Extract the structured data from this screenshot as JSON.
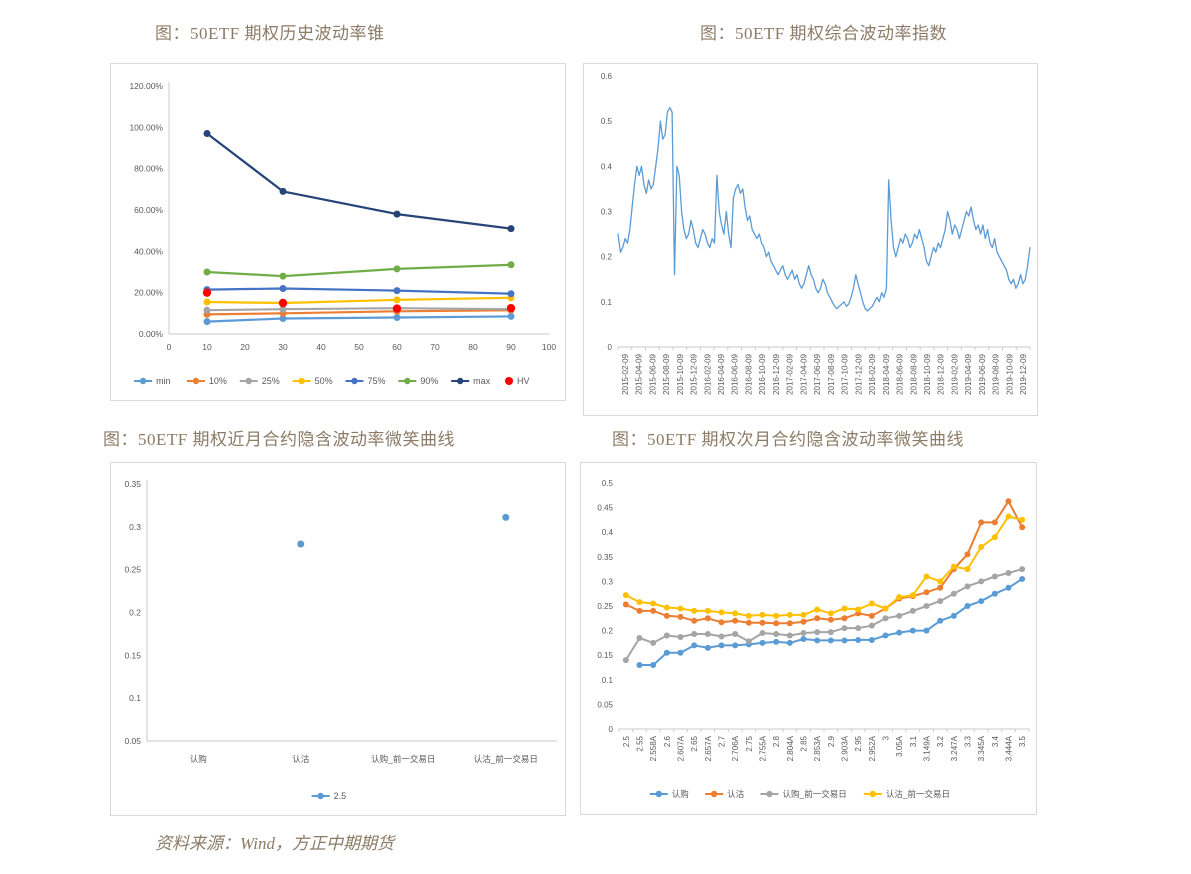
{
  "page": {
    "source_note": "资料来源：Wind，方正中期期货"
  },
  "figures": [
    {
      "title": "图：50ETF 期权历史波动率锥"
    },
    {
      "title": "图：50ETF 期权综合波动率指数"
    },
    {
      "title": "图：50ETF 期权近月合约隐含波动率微笑曲线"
    },
    {
      "title": "图：50ETF 期权次月合约隐含波动率微笑曲线"
    }
  ],
  "chart_data": [
    {
      "id": "vol-cone",
      "type": "line",
      "title": "图：50ETF 期权历史波动率锥",
      "x": [
        10,
        30,
        60,
        90
      ],
      "xlim": [
        0,
        100
      ],
      "x_ticks": [
        0,
        10,
        20,
        30,
        40,
        50,
        60,
        70,
        80,
        90,
        100
      ],
      "ylim": [
        0,
        1.2
      ],
      "y_ticks": [
        "0.00%",
        "20.00%",
        "40.00%",
        "60.00%",
        "80.00%",
        "100.00%",
        "120.00%"
      ],
      "grid": false,
      "legend_position": "bottom",
      "series": [
        {
          "name": "min",
          "color": "#5B9BD5",
          "values": [
            0.06,
            0.075,
            0.08,
            0.085
          ]
        },
        {
          "name": "10%",
          "color": "#ED7D31",
          "values": [
            0.095,
            0.1,
            0.11,
            0.115
          ]
        },
        {
          "name": "25%",
          "color": "#A5A5A5",
          "values": [
            0.115,
            0.12,
            0.125,
            0.12
          ]
        },
        {
          "name": "50%",
          "color": "#FFC000",
          "values": [
            0.155,
            0.15,
            0.165,
            0.175
          ]
        },
        {
          "name": "75%",
          "color": "#4472C4",
          "values": [
            0.215,
            0.22,
            0.21,
            0.195
          ]
        },
        {
          "name": "90%",
          "color": "#70AD47",
          "values": [
            0.3,
            0.28,
            0.315,
            0.335
          ]
        },
        {
          "name": "max",
          "color": "#264478",
          "values": [
            0.97,
            0.69,
            0.58,
            0.51
          ]
        },
        {
          "name": "HV",
          "color": "#FF0000",
          "markers_only": true,
          "values": [
            0.2,
            0.15,
            0.123,
            0.125
          ]
        }
      ]
    },
    {
      "id": "vol-index",
      "type": "line",
      "title": "图：50ETF 期权综合波动率指数",
      "x_labels": [
        "2015-02-09",
        "2015-04-09",
        "2015-06-09",
        "2015-08-09",
        "2015-10-09",
        "2015-12-09",
        "2016-02-09",
        "2016-04-09",
        "2016-06-09",
        "2016-08-09",
        "2016-10-09",
        "2016-12-09",
        "2017-02-09",
        "2017-04-09",
        "2017-06-09",
        "2017-08-09",
        "2017-10-09",
        "2017-12-09",
        "2018-02-09",
        "2018-04-09",
        "2018-06-09",
        "2018-08-09",
        "2018-10-09",
        "2018-12-09",
        "2019-02-09",
        "2019-04-09",
        "2019-06-09",
        "2019-08-09",
        "2019-10-09",
        "2019-12-09"
      ],
      "ylim": [
        0,
        0.6
      ],
      "y_ticks": [
        "0",
        "0.1",
        "0.2",
        "0.3",
        "0.4",
        "0.5",
        "0.6"
      ],
      "grid": false,
      "legend_position": "none",
      "series": [
        {
          "color": "#5B9BD5",
          "values": [
            0.25,
            0.21,
            0.22,
            0.24,
            0.23,
            0.26,
            0.31,
            0.36,
            0.4,
            0.38,
            0.4,
            0.36,
            0.34,
            0.37,
            0.35,
            0.36,
            0.4,
            0.44,
            0.5,
            0.46,
            0.47,
            0.52,
            0.53,
            0.52,
            0.16,
            0.4,
            0.38,
            0.3,
            0.26,
            0.24,
            0.25,
            0.28,
            0.26,
            0.23,
            0.22,
            0.24,
            0.26,
            0.25,
            0.23,
            0.22,
            0.24,
            0.23,
            0.38,
            0.3,
            0.27,
            0.25,
            0.3,
            0.25,
            0.22,
            0.33,
            0.35,
            0.36,
            0.34,
            0.35,
            0.31,
            0.28,
            0.29,
            0.26,
            0.25,
            0.24,
            0.25,
            0.23,
            0.22,
            0.2,
            0.21,
            0.19,
            0.18,
            0.17,
            0.16,
            0.17,
            0.18,
            0.16,
            0.15,
            0.16,
            0.17,
            0.15,
            0.16,
            0.14,
            0.13,
            0.14,
            0.16,
            0.18,
            0.16,
            0.15,
            0.13,
            0.12,
            0.13,
            0.15,
            0.14,
            0.12,
            0.11,
            0.1,
            0.09,
            0.085,
            0.09,
            0.095,
            0.1,
            0.09,
            0.095,
            0.11,
            0.13,
            0.16,
            0.14,
            0.12,
            0.1,
            0.085,
            0.08,
            0.085,
            0.09,
            0.1,
            0.11,
            0.1,
            0.12,
            0.11,
            0.13,
            0.37,
            0.28,
            0.22,
            0.2,
            0.22,
            0.24,
            0.23,
            0.25,
            0.24,
            0.22,
            0.23,
            0.25,
            0.24,
            0.26,
            0.24,
            0.22,
            0.19,
            0.18,
            0.2,
            0.22,
            0.21,
            0.23,
            0.22,
            0.24,
            0.26,
            0.3,
            0.28,
            0.25,
            0.27,
            0.26,
            0.24,
            0.26,
            0.28,
            0.3,
            0.29,
            0.31,
            0.28,
            0.26,
            0.27,
            0.25,
            0.27,
            0.24,
            0.26,
            0.23,
            0.22,
            0.24,
            0.21,
            0.2,
            0.19,
            0.18,
            0.17,
            0.15,
            0.14,
            0.15,
            0.13,
            0.14,
            0.16,
            0.14,
            0.15,
            0.18,
            0.22
          ]
        }
      ]
    },
    {
      "id": "smile-near",
      "type": "scatter",
      "title": "图：50ETF 期权近月合约隐含波动率微笑曲线",
      "x_labels": [
        "认购",
        "认沽",
        "认购_前一交易日",
        "认沽_前一交易日"
      ],
      "ylim": [
        0.05,
        0.35
      ],
      "y_ticks": [
        "0.05",
        "0.1",
        "0.15",
        "0.2",
        "0.25",
        "0.3",
        "0.35"
      ],
      "grid": false,
      "legend_position": "bottom",
      "series": [
        {
          "name": "2.5",
          "color": "#5B9BD5",
          "values": [
            null,
            0.28,
            null,
            0.311
          ]
        }
      ]
    },
    {
      "id": "smile-next",
      "type": "line",
      "title": "图：50ETF 期权次月合约隐含波动率微笑曲线",
      "x_labels": [
        "2.5",
        "2.55",
        "2.558A",
        "2.6",
        "2.607A",
        "2.65",
        "2.657A",
        "2.7",
        "2.706A",
        "2.75",
        "2.755A",
        "2.8",
        "2.804A",
        "2.85",
        "2.853A",
        "2.9",
        "2.903A",
        "2.95",
        "2.952A",
        "3",
        "3.05A",
        "3.1",
        "3.149A",
        "3.2",
        "3.247A",
        "3.3",
        "3.345A",
        "3.4",
        "3.444A",
        "3.5"
      ],
      "ylim": [
        0,
        0.5
      ],
      "y_ticks": [
        "0",
        "0.05",
        "0.1",
        "0.15",
        "0.2",
        "0.25",
        "0.3",
        "0.35",
        "0.4",
        "0.45",
        "0.5"
      ],
      "grid": false,
      "legend_position": "bottom",
      "series": [
        {
          "name": "认购",
          "color": "#5B9BD5",
          "values": [
            null,
            0.13,
            0.13,
            0.155,
            0.155,
            0.17,
            0.165,
            0.17,
            0.17,
            0.172,
            0.175,
            0.177,
            0.175,
            0.183,
            0.18,
            0.18,
            0.18,
            0.181,
            0.181,
            0.19,
            0.196,
            0.2,
            0.2,
            0.22,
            0.23,
            0.25,
            0.26,
            0.275,
            0.287,
            0.305
          ]
        },
        {
          "name": "认沽",
          "color": "#ED7D31",
          "values": [
            0.253,
            0.24,
            0.24,
            0.23,
            0.228,
            0.22,
            0.225,
            0.217,
            0.22,
            0.216,
            0.216,
            0.215,
            0.215,
            0.218,
            0.225,
            0.222,
            0.225,
            0.235,
            0.23,
            0.245,
            0.265,
            0.27,
            0.278,
            0.287,
            0.325,
            0.355,
            0.42,
            0.42,
            0.463,
            0.41
          ]
        },
        {
          "name": "认购_前一交易日",
          "color": "#A5A5A5",
          "values": [
            0.14,
            0.185,
            0.175,
            0.19,
            0.187,
            0.193,
            0.193,
            0.188,
            0.193,
            0.178,
            0.195,
            0.193,
            0.19,
            0.195,
            0.197,
            0.197,
            0.205,
            0.205,
            0.21,
            0.225,
            0.23,
            0.24,
            0.25,
            0.26,
            0.275,
            0.29,
            0.3,
            0.31,
            0.317,
            0.325
          ]
        },
        {
          "name": "认沽_前一交易日",
          "color": "#FFC000",
          "values": [
            0.272,
            0.258,
            0.255,
            0.247,
            0.245,
            0.24,
            0.24,
            0.237,
            0.235,
            0.23,
            0.232,
            0.23,
            0.232,
            0.232,
            0.243,
            0.235,
            0.245,
            0.243,
            0.255,
            0.245,
            0.268,
            0.272,
            0.31,
            0.3,
            0.33,
            0.325,
            0.37,
            0.39,
            0.432,
            0.425
          ]
        }
      ]
    }
  ]
}
